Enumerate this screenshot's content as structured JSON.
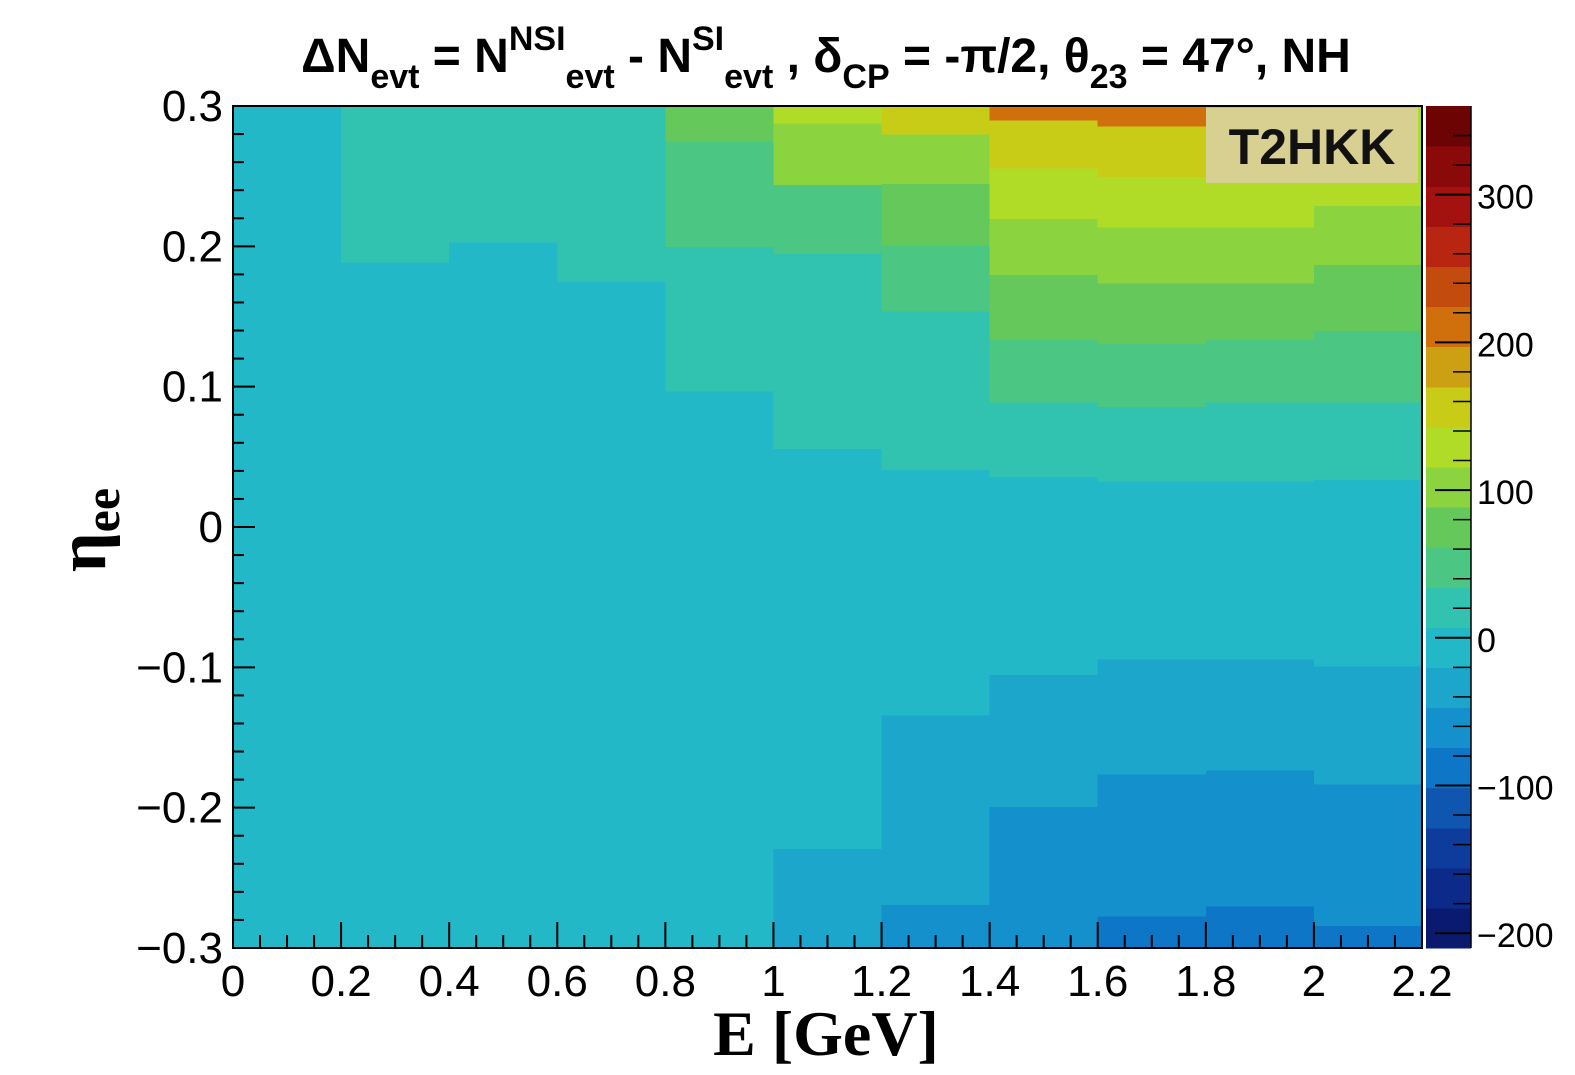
{
  "chart_data": {
    "type": "heatmap",
    "title": {
      "parts": [
        {
          "text": "ΔN",
          "style": "normal"
        },
        {
          "text": "evt",
          "style": "sub"
        },
        {
          "text": " = N",
          "style": "normal"
        },
        {
          "text": "NSI",
          "style": "sup"
        },
        {
          "text": "evt",
          "style": "sub"
        },
        {
          "text": " - N",
          "style": "normal"
        },
        {
          "text": "SI",
          "style": "sup"
        },
        {
          "text": "evt",
          "style": "sub"
        },
        {
          "text": " , δ",
          "style": "normal"
        },
        {
          "text": "CP",
          "style": "sub"
        },
        {
          "text": " = -π/2,  θ",
          "style": "normal"
        },
        {
          "text": "23",
          "style": "sub"
        },
        {
          "text": " = 47°, NH",
          "style": "normal"
        }
      ]
    },
    "xlabel": "E [GeV]",
    "ylabel": {
      "base": "η",
      "sub": "ee"
    },
    "xlim": [
      0,
      2.2
    ],
    "ylim": [
      -0.3,
      0.3
    ],
    "xticks": [
      "0",
      "0.2",
      "0.4",
      "0.6",
      "0.8",
      "1",
      "1.2",
      "1.4",
      "1.6",
      "1.8",
      "2",
      "2.2"
    ],
    "xtick_values": [
      0,
      0.2,
      0.4,
      0.6,
      0.8,
      1,
      1.2,
      1.4,
      1.6,
      1.8,
      2,
      2.2
    ],
    "yticks": [
      "−0.3",
      "−0.2",
      "−0.1",
      "0",
      "0.1",
      "0.2",
      "0.3"
    ],
    "ytick_values": [
      -0.3,
      -0.2,
      -0.1,
      0,
      0.1,
      0.2,
      0.3
    ],
    "zlim": [
      -210,
      360
    ],
    "zticks": [
      "−200",
      "−100",
      "0",
      "100",
      "200",
      "300"
    ],
    "ztick_values": [
      -200,
      -100,
      0,
      100,
      200,
      300
    ],
    "legend_box": "T2HKK",
    "palette": [
      "#0a1a6e",
      "#0b2a8a",
      "#0d3c9c",
      "#0f56b0",
      "#0d76c6",
      "#1490cc",
      "#1ca6cc",
      "#22b8c8",
      "#31c2b0",
      "#4bc683",
      "#64c95a",
      "#8cd340",
      "#b0dc28",
      "#c8cc16",
      "#cca012",
      "#d0700c",
      "#c44b0e",
      "#b82612",
      "#a4120f",
      "#8a0a0a",
      "#6c0404"
    ],
    "x_bins": [
      0,
      0.2,
      0.4,
      0.6,
      0.8,
      1.0,
      1.2,
      1.4,
      1.6,
      1.8,
      2.0,
      2.2
    ],
    "cells": [
      {
        "x": 0.0,
        "cuts": [
          -0.3,
          0.3
        ],
        "values": [
          0
        ]
      },
      {
        "x": 0.2,
        "cuts": [
          -0.3,
          -0.21,
          0.189,
          0.3
        ],
        "values": [
          -20,
          0,
          25
        ]
      },
      {
        "x": 0.4,
        "cuts": [
          -0.3,
          -0.182,
          0.203,
          0.3
        ],
        "values": [
          -20,
          0,
          25
        ]
      },
      {
        "x": 0.6,
        "cuts": [
          -0.3,
          0.175,
          0.3
        ],
        "values": [
          0,
          25
        ]
      },
      {
        "x": 0.8,
        "cuts": [
          -0.3,
          -0.109,
          0.097,
          0.2,
          0.275,
          0.3
        ],
        "values": [
          -20,
          0,
          25,
          55,
          80
        ]
      },
      {
        "x": 1.0,
        "cuts": [
          -0.3,
          -0.229,
          -0.052,
          0.056,
          0.195,
          0.244,
          0.288,
          0.3
        ],
        "values": [
          -40,
          -20,
          0,
          25,
          55,
          110,
          130
        ]
      },
      {
        "x": 1.2,
        "cuts": [
          -0.3,
          -0.269,
          -0.134,
          -0.051,
          0.041,
          0.154,
          0.201,
          0.245,
          0.28,
          0.3
        ],
        "values": [
          -60,
          -40,
          -20,
          0,
          25,
          55,
          80,
          110,
          160
        ]
      },
      {
        "x": 1.4,
        "cuts": [
          -0.3,
          -0.199,
          -0.105,
          -0.03,
          0.036,
          0.089,
          0.134,
          0.18,
          0.22,
          0.256,
          0.29,
          0.3
        ],
        "values": [
          -60,
          -40,
          -20,
          0,
          25,
          55,
          80,
          110,
          130,
          160,
          200
        ]
      },
      {
        "x": 1.6,
        "cuts": [
          -0.3,
          -0.277,
          -0.176,
          -0.094,
          -0.027,
          0.033,
          0.086,
          0.131,
          0.174,
          0.214,
          0.25,
          0.286,
          0.3
        ],
        "values": [
          -80,
          -60,
          -40,
          -20,
          0,
          25,
          55,
          80,
          110,
          130,
          160,
          200
        ]
      },
      {
        "x": 1.8,
        "cuts": [
          -0.3,
          -0.27,
          -0.173,
          -0.094,
          -0.027,
          0.033,
          0.089,
          0.134,
          0.174,
          0.214,
          0.25,
          0.3
        ],
        "values": [
          -80,
          -60,
          -40,
          -20,
          0,
          25,
          55,
          80,
          110,
          130,
          160
        ]
      },
      {
        "x": 2.0,
        "cuts": [
          -0.3,
          -0.284,
          -0.183,
          -0.099,
          -0.028,
          0.034,
          0.089,
          0.14,
          0.187,
          0.229,
          0.3
        ],
        "values": [
          -80,
          -60,
          -40,
          -20,
          0,
          25,
          55,
          80,
          110,
          130
        ]
      }
    ]
  }
}
